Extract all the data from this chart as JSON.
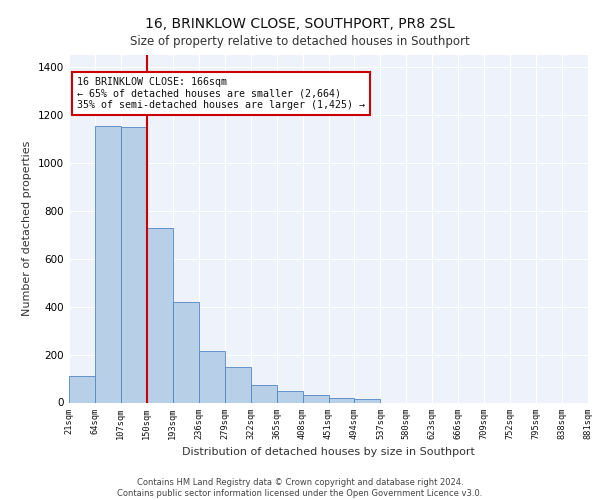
{
  "title": "16, BRINKLOW CLOSE, SOUTHPORT, PR8 2SL",
  "subtitle": "Size of property relative to detached houses in Southport",
  "xlabel": "Distribution of detached houses by size in Southport",
  "ylabel": "Number of detached properties",
  "categories": [
    "21sqm",
    "64sqm",
    "107sqm",
    "150sqm",
    "193sqm",
    "236sqm",
    "279sqm",
    "322sqm",
    "365sqm",
    "408sqm",
    "451sqm",
    "494sqm",
    "537sqm",
    "580sqm",
    "623sqm",
    "666sqm",
    "709sqm",
    "752sqm",
    "795sqm",
    "838sqm",
    "881sqm"
  ],
  "bar_heights": [
    110,
    1155,
    1148,
    730,
    420,
    215,
    150,
    72,
    48,
    32,
    18,
    13,
    0,
    0,
    0,
    0,
    0,
    0,
    0,
    0
  ],
  "bar_color": "#b8cfe8",
  "bar_edge_color": "#5585c5",
  "vline_position": 3.0,
  "vline_color": "#cc0000",
  "annotation_text": "16 BRINKLOW CLOSE: 166sqm\n← 65% of detached houses are smaller (2,664)\n35% of semi-detached houses are larger (1,425) →",
  "annotation_box_color": "#cc0000",
  "ylim": [
    0,
    1450
  ],
  "yticks": [
    0,
    200,
    400,
    600,
    800,
    1000,
    1200,
    1400
  ],
  "footer": "Contains HM Land Registry data © Crown copyright and database right 2024.\nContains public sector information licensed under the Open Government Licence v3.0.",
  "plot_bg_color": "#eef2fa",
  "fig_bg_color": "#ffffff"
}
